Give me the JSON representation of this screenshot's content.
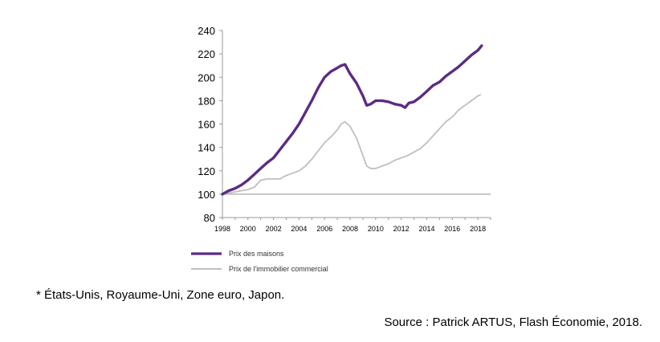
{
  "colors": {
    "housing": "#5b2c83",
    "commercial": "#bfbfbf",
    "axis": "#999999",
    "text": "#000000"
  },
  "chart_data": {
    "type": "line",
    "title": "",
    "xlabel": "",
    "ylabel": "",
    "xlim": [
      1998,
      2019
    ],
    "ylim": [
      80,
      240
    ],
    "x_ticks": [
      1998,
      2000,
      2002,
      2004,
      2006,
      2008,
      2010,
      2012,
      2014,
      2016,
      2018
    ],
    "x_tick_labels": [
      "1998",
      "2000",
      "2002",
      "2004",
      "2006",
      "2008",
      "2010",
      "2012",
      "2014",
      "2016",
      "2018"
    ],
    "y_ticks": [
      80,
      100,
      120,
      140,
      160,
      180,
      200,
      220,
      240
    ],
    "y_tick_labels": [
      "80",
      "100",
      "120",
      "140",
      "160",
      "180",
      "200",
      "220",
      "240"
    ],
    "reference_line": 100,
    "grid": false,
    "legend_position": "bottom-left",
    "series": [
      {
        "name": "Prix des maisons",
        "color": "#5b2c83",
        "x": [
          1998.0,
          1998.5,
          1999.0,
          1999.5,
          2000.0,
          2000.5,
          2001.0,
          2001.5,
          2002.0,
          2002.5,
          2003.0,
          2003.5,
          2004.0,
          2004.5,
          2005.0,
          2005.5,
          2006.0,
          2006.5,
          2007.0,
          2007.3,
          2007.6,
          2008.0,
          2008.5,
          2009.0,
          2009.3,
          2009.6,
          2010.0,
          2010.5,
          2011.0,
          2011.5,
          2012.0,
          2012.3,
          2012.6,
          2013.0,
          2013.5,
          2014.0,
          2014.5,
          2015.0,
          2015.5,
          2016.0,
          2016.5,
          2017.0,
          2017.5,
          2018.0,
          2018.3
        ],
        "values": [
          100,
          103,
          105,
          108,
          112,
          117,
          122,
          127,
          131,
          138,
          145,
          152,
          160,
          170,
          180,
          191,
          200,
          205,
          208,
          210,
          211,
          203,
          195,
          184,
          176,
          177,
          180,
          180,
          179,
          177,
          176,
          174,
          178,
          179,
          183,
          188,
          193,
          196,
          201,
          205,
          209,
          214,
          219,
          223,
          227
        ]
      },
      {
        "name": "Prix de l'immobilier commercial",
        "color": "#bfbfbf",
        "x": [
          1998.0,
          1998.5,
          1999.0,
          1999.5,
          2000.0,
          2000.5,
          2001.0,
          2001.5,
          2002.0,
          2002.5,
          2003.0,
          2003.5,
          2004.0,
          2004.5,
          2005.0,
          2005.5,
          2006.0,
          2006.5,
          2007.0,
          2007.3,
          2007.6,
          2008.0,
          2008.5,
          2009.0,
          2009.3,
          2009.6,
          2010.0,
          2010.5,
          2011.0,
          2011.5,
          2012.0,
          2012.5,
          2013.0,
          2013.5,
          2014.0,
          2014.5,
          2015.0,
          2015.5,
          2016.0,
          2016.5,
          2017.0,
          2017.5,
          2018.0,
          2018.2
        ],
        "values": [
          100,
          101,
          102,
          103,
          104,
          106,
          112,
          113,
          113,
          113,
          116,
          118,
          120,
          124,
          130,
          137,
          144,
          149,
          155,
          160,
          162,
          158,
          148,
          133,
          124,
          122,
          122,
          124,
          126,
          129,
          131,
          133,
          136,
          139,
          144,
          150,
          156,
          162,
          166,
          172,
          176,
          180,
          184,
          185
        ]
      }
    ]
  },
  "footer": {
    "note": "* États-Unis, Royaume-Uni, Zone euro, Japon.",
    "source": "Source : Patrick ARTUS, Flash Économie, 2018."
  }
}
